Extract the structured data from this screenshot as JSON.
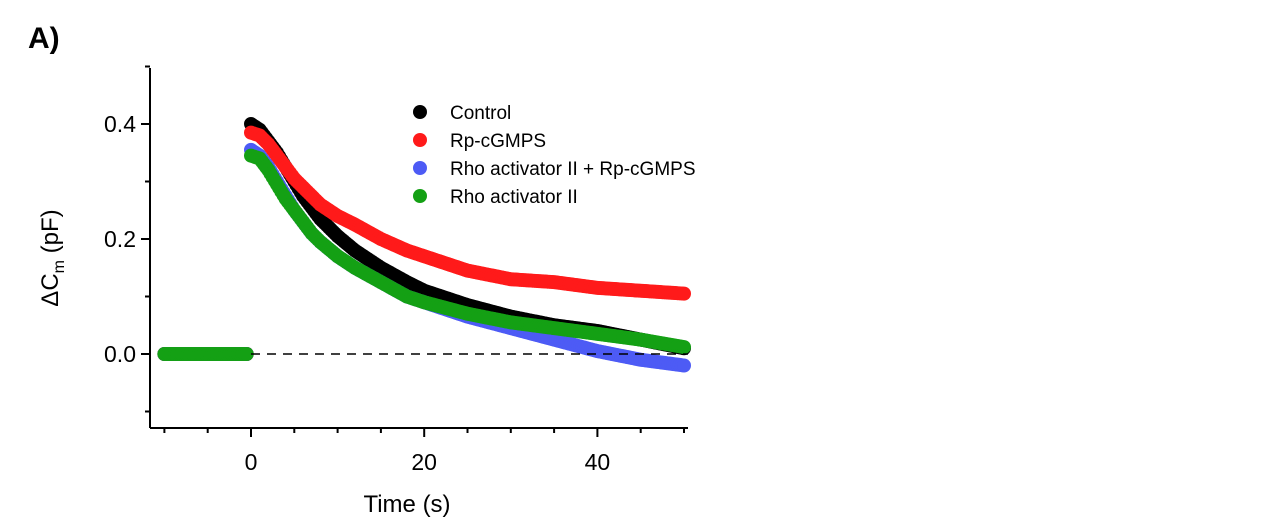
{
  "panel_label": "A)",
  "chart_data": {
    "type": "scatter",
    "title": "",
    "xlabel": "Time (s)",
    "ylabel_parts": {
      "prefix": "ΔC",
      "subscript": "m",
      "suffix": " (pF)"
    },
    "xlim": [
      -11,
      50
    ],
    "ylim": [
      -0.12,
      0.5
    ],
    "x_ticks": [
      0,
      20,
      40
    ],
    "x_tick_labels": [
      "0",
      "20",
      "40"
    ],
    "y_ticks": [
      0.0,
      0.2,
      0.4
    ],
    "y_tick_labels": [
      "0.0",
      "0.2",
      "0.4"
    ],
    "reference_line": {
      "y": 0.0,
      "style": "dashed"
    },
    "legend_position": "top-center",
    "series": [
      {
        "name": "Control",
        "color": "#000000",
        "baseline": {
          "x_range": [
            -10,
            -0.5
          ],
          "value": 0.0
        },
        "points": [
          [
            0,
            0.4
          ],
          [
            1,
            0.39
          ],
          [
            2,
            0.37
          ],
          [
            3,
            0.35
          ],
          [
            4,
            0.325
          ],
          [
            5,
            0.3
          ],
          [
            6,
            0.275
          ],
          [
            7,
            0.255
          ],
          [
            8,
            0.235
          ],
          [
            10,
            0.205
          ],
          [
            12,
            0.18
          ],
          [
            15,
            0.15
          ],
          [
            18,
            0.125
          ],
          [
            20,
            0.11
          ],
          [
            25,
            0.085
          ],
          [
            30,
            0.065
          ],
          [
            35,
            0.05
          ],
          [
            40,
            0.04
          ],
          [
            45,
            0.025
          ],
          [
            50,
            0.01
          ]
        ]
      },
      {
        "name": "Rp-cGMPS",
        "color": "#ff1a1a",
        "baseline": {
          "x_range": [
            -10,
            -0.5
          ],
          "value": 0.0
        },
        "points": [
          [
            0,
            0.385
          ],
          [
            1,
            0.38
          ],
          [
            2,
            0.365
          ],
          [
            3,
            0.345
          ],
          [
            4,
            0.325
          ],
          [
            5,
            0.305
          ],
          [
            6,
            0.29
          ],
          [
            7,
            0.275
          ],
          [
            8,
            0.26
          ],
          [
            10,
            0.24
          ],
          [
            12,
            0.225
          ],
          [
            15,
            0.2
          ],
          [
            18,
            0.18
          ],
          [
            20,
            0.17
          ],
          [
            25,
            0.145
          ],
          [
            30,
            0.13
          ],
          [
            35,
            0.125
          ],
          [
            40,
            0.115
          ],
          [
            45,
            0.11
          ],
          [
            50,
            0.105
          ]
        ]
      },
      {
        "name": "Rho activator II + Rp-cGMPS",
        "color": "#4d5bf5",
        "baseline": {
          "x_range": [
            -10,
            -0.5
          ],
          "value": 0.0
        },
        "points": [
          [
            0,
            0.355
          ],
          [
            1,
            0.345
          ],
          [
            2,
            0.325
          ],
          [
            3,
            0.3
          ],
          [
            4,
            0.275
          ],
          [
            5,
            0.25
          ],
          [
            6,
            0.23
          ],
          [
            7,
            0.21
          ],
          [
            8,
            0.195
          ],
          [
            10,
            0.17
          ],
          [
            12,
            0.15
          ],
          [
            15,
            0.125
          ],
          [
            18,
            0.1
          ],
          [
            20,
            0.09
          ],
          [
            25,
            0.065
          ],
          [
            30,
            0.045
          ],
          [
            35,
            0.025
          ],
          [
            40,
            0.005
          ],
          [
            45,
            -0.01
          ],
          [
            50,
            -0.02
          ]
        ]
      },
      {
        "name": "Rho activator II",
        "color": "#14a014",
        "baseline": {
          "x_range": [
            -10,
            -0.5
          ],
          "value": 0.0
        },
        "points": [
          [
            0,
            0.345
          ],
          [
            1,
            0.34
          ],
          [
            2,
            0.32
          ],
          [
            3,
            0.295
          ],
          [
            4,
            0.27
          ],
          [
            5,
            0.25
          ],
          [
            6,
            0.23
          ],
          [
            7,
            0.21
          ],
          [
            8,
            0.195
          ],
          [
            10,
            0.17
          ],
          [
            12,
            0.15
          ],
          [
            15,
            0.125
          ],
          [
            18,
            0.1
          ],
          [
            20,
            0.09
          ],
          [
            25,
            0.07
          ],
          [
            30,
            0.055
          ],
          [
            35,
            0.045
          ],
          [
            40,
            0.035
          ],
          [
            45,
            0.025
          ],
          [
            50,
            0.012
          ]
        ]
      }
    ]
  }
}
